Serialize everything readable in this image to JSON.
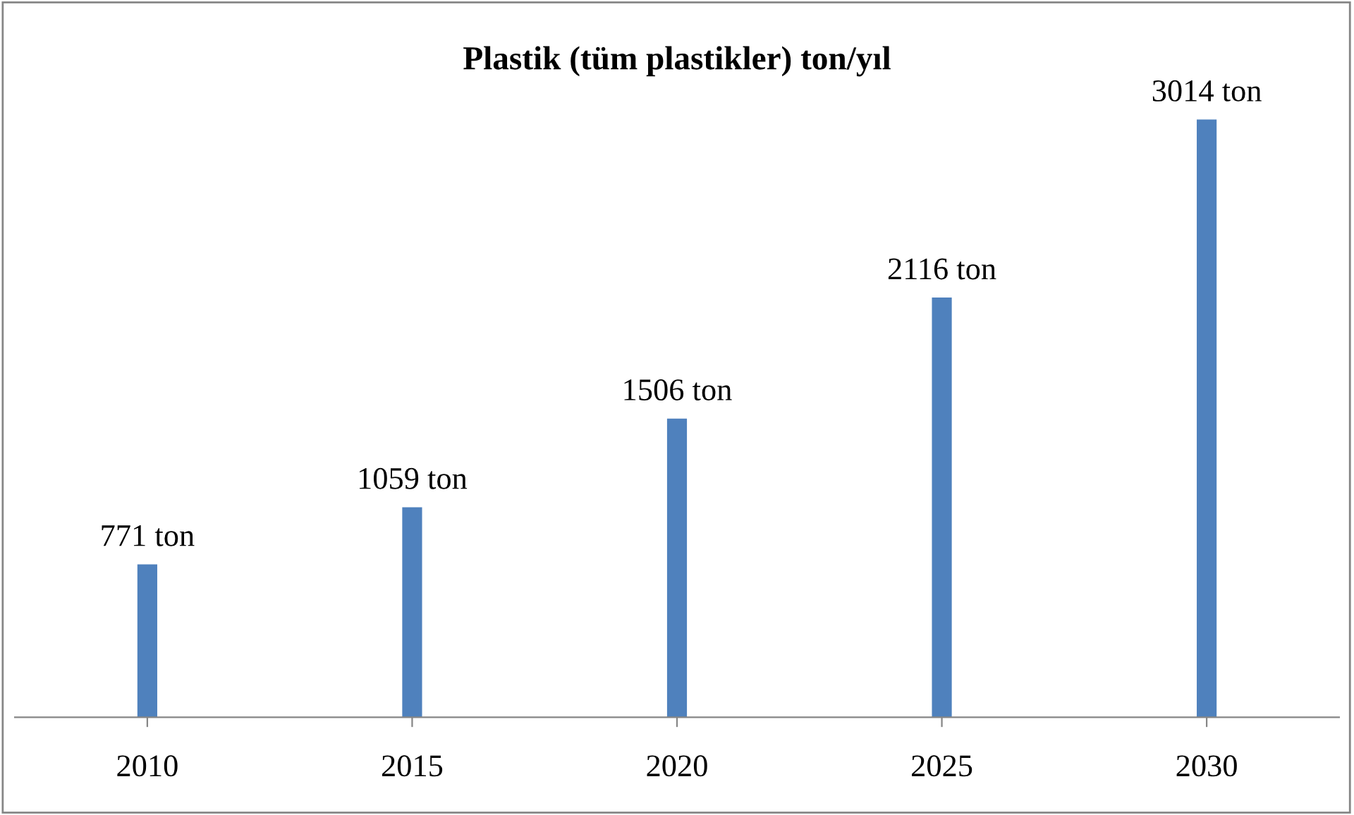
{
  "chart_data": {
    "type": "bar",
    "title": "Plastik (tüm plastikler) ton/yıl",
    "categories": [
      "2010",
      "2015",
      "2020",
      "2025",
      "2030"
    ],
    "values": [
      771,
      1059,
      1506,
      2116,
      3014
    ],
    "value_labels": [
      "771 ton",
      "1059 ton",
      "1506 ton",
      "2116 ton",
      "3014 ton"
    ],
    "color": "#4f81bd",
    "grid": false,
    "legend": false
  }
}
